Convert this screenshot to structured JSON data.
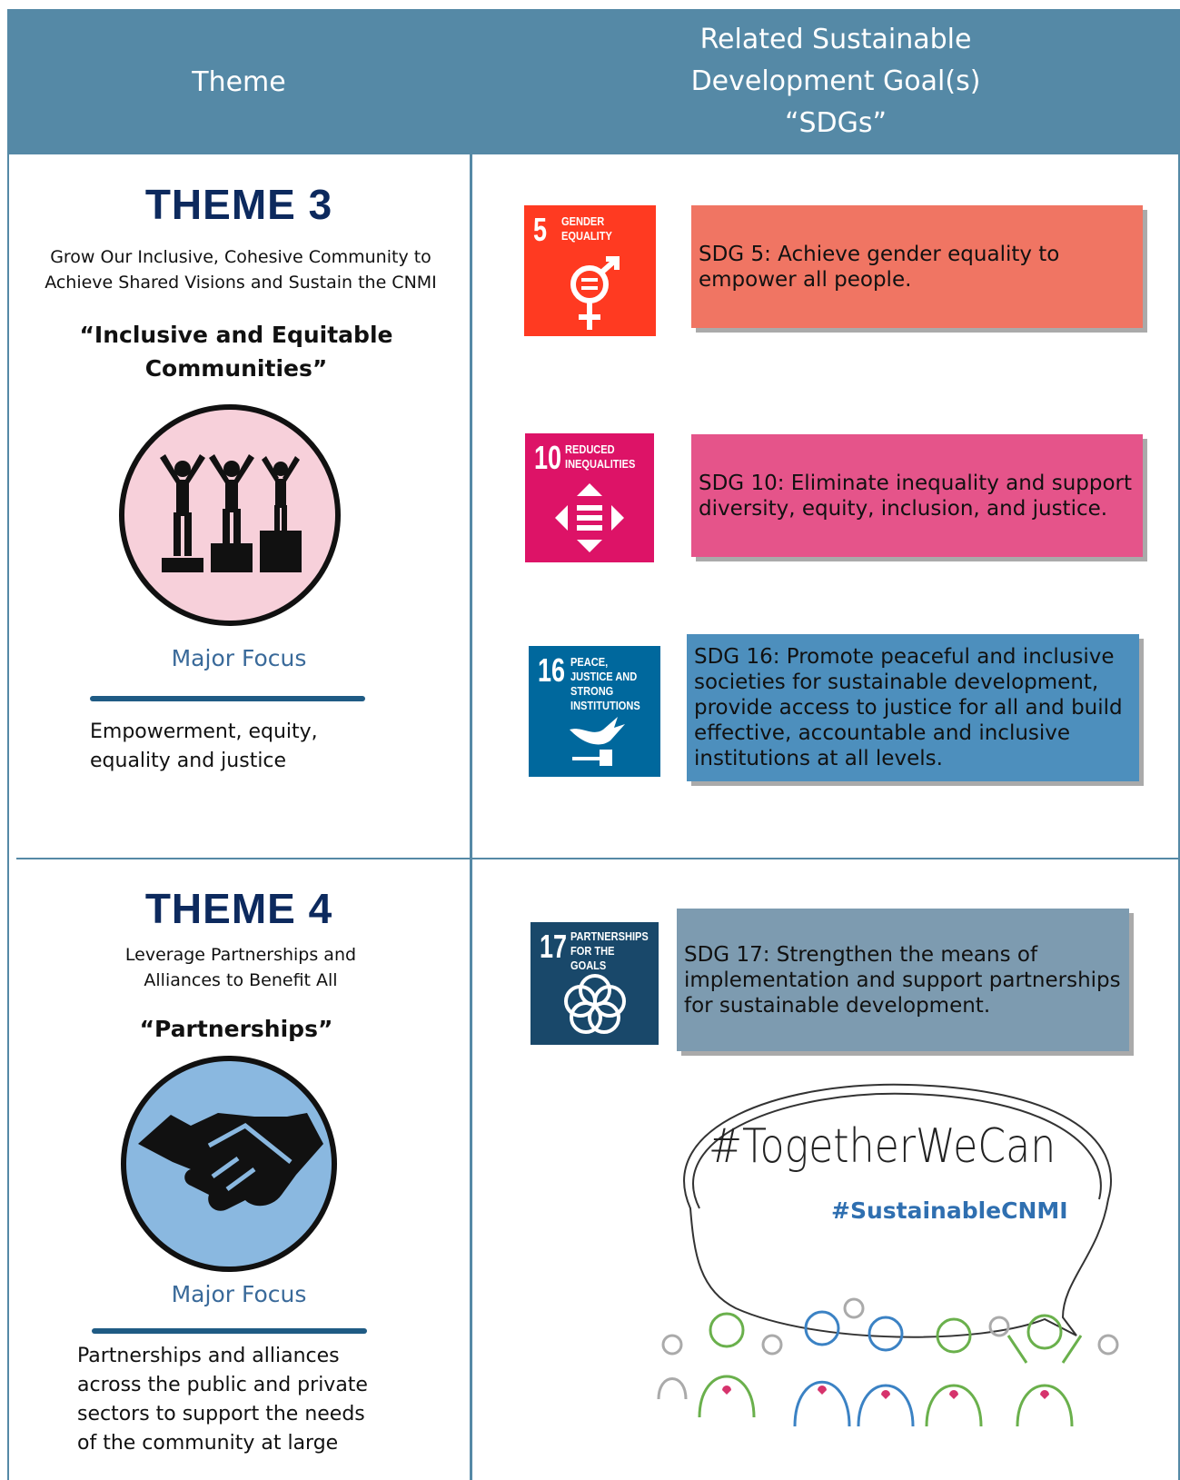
{
  "header": {
    "theme": "Theme",
    "sdgs": "Related Sustainable Development Goal(s) “SDGs”"
  },
  "themes": [
    {
      "title": "THEME 3",
      "subtitle": "Grow Our Inclusive, Cohesive Community to Achieve Shared Visions and Sustain the CNMI",
      "quote": "“Inclusive and Equitable Communities”",
      "focus_heading": "Major Focus",
      "focus": "Empowerment, equity, equality and justice",
      "sdgs": [
        {
          "number": "5",
          "icon_label": "GENDER EQUALITY",
          "text": "SDG 5: Achieve gender equality to empower all people."
        },
        {
          "number": "10",
          "icon_label": "REDUCED INEQUALITIES",
          "text": "SDG 10: Eliminate inequality and support diversity, equity, inclusion, and justice."
        },
        {
          "number": "16",
          "icon_label": "PEACE, JUSTICE AND STRONG INSTITUTIONS",
          "text": "SDG 16: Promote peaceful and inclusive societies for sustainable development, provide access to justice for all and build effective, accountable and inclusive institutions at all levels."
        }
      ]
    },
    {
      "title": "THEME 4",
      "subtitle": "Leverage Partnerships and Alliances to Benefit All",
      "quote": "“Partnerships”",
      "focus_heading": "Major Focus",
      "focus": "Partnerships and alliances across the public and private sectors to support the needs of the community at large",
      "sdgs": [
        {
          "number": "17",
          "icon_label": "PARTNERSHIPS FOR THE GOALS",
          "text": "SDG 17: Strengthen the means of implementation and support partnerships for sustainable development."
        }
      ]
    }
  ],
  "slogan": {
    "main": "#TogetherWeCan",
    "sub": "#SustainableCNMI"
  }
}
